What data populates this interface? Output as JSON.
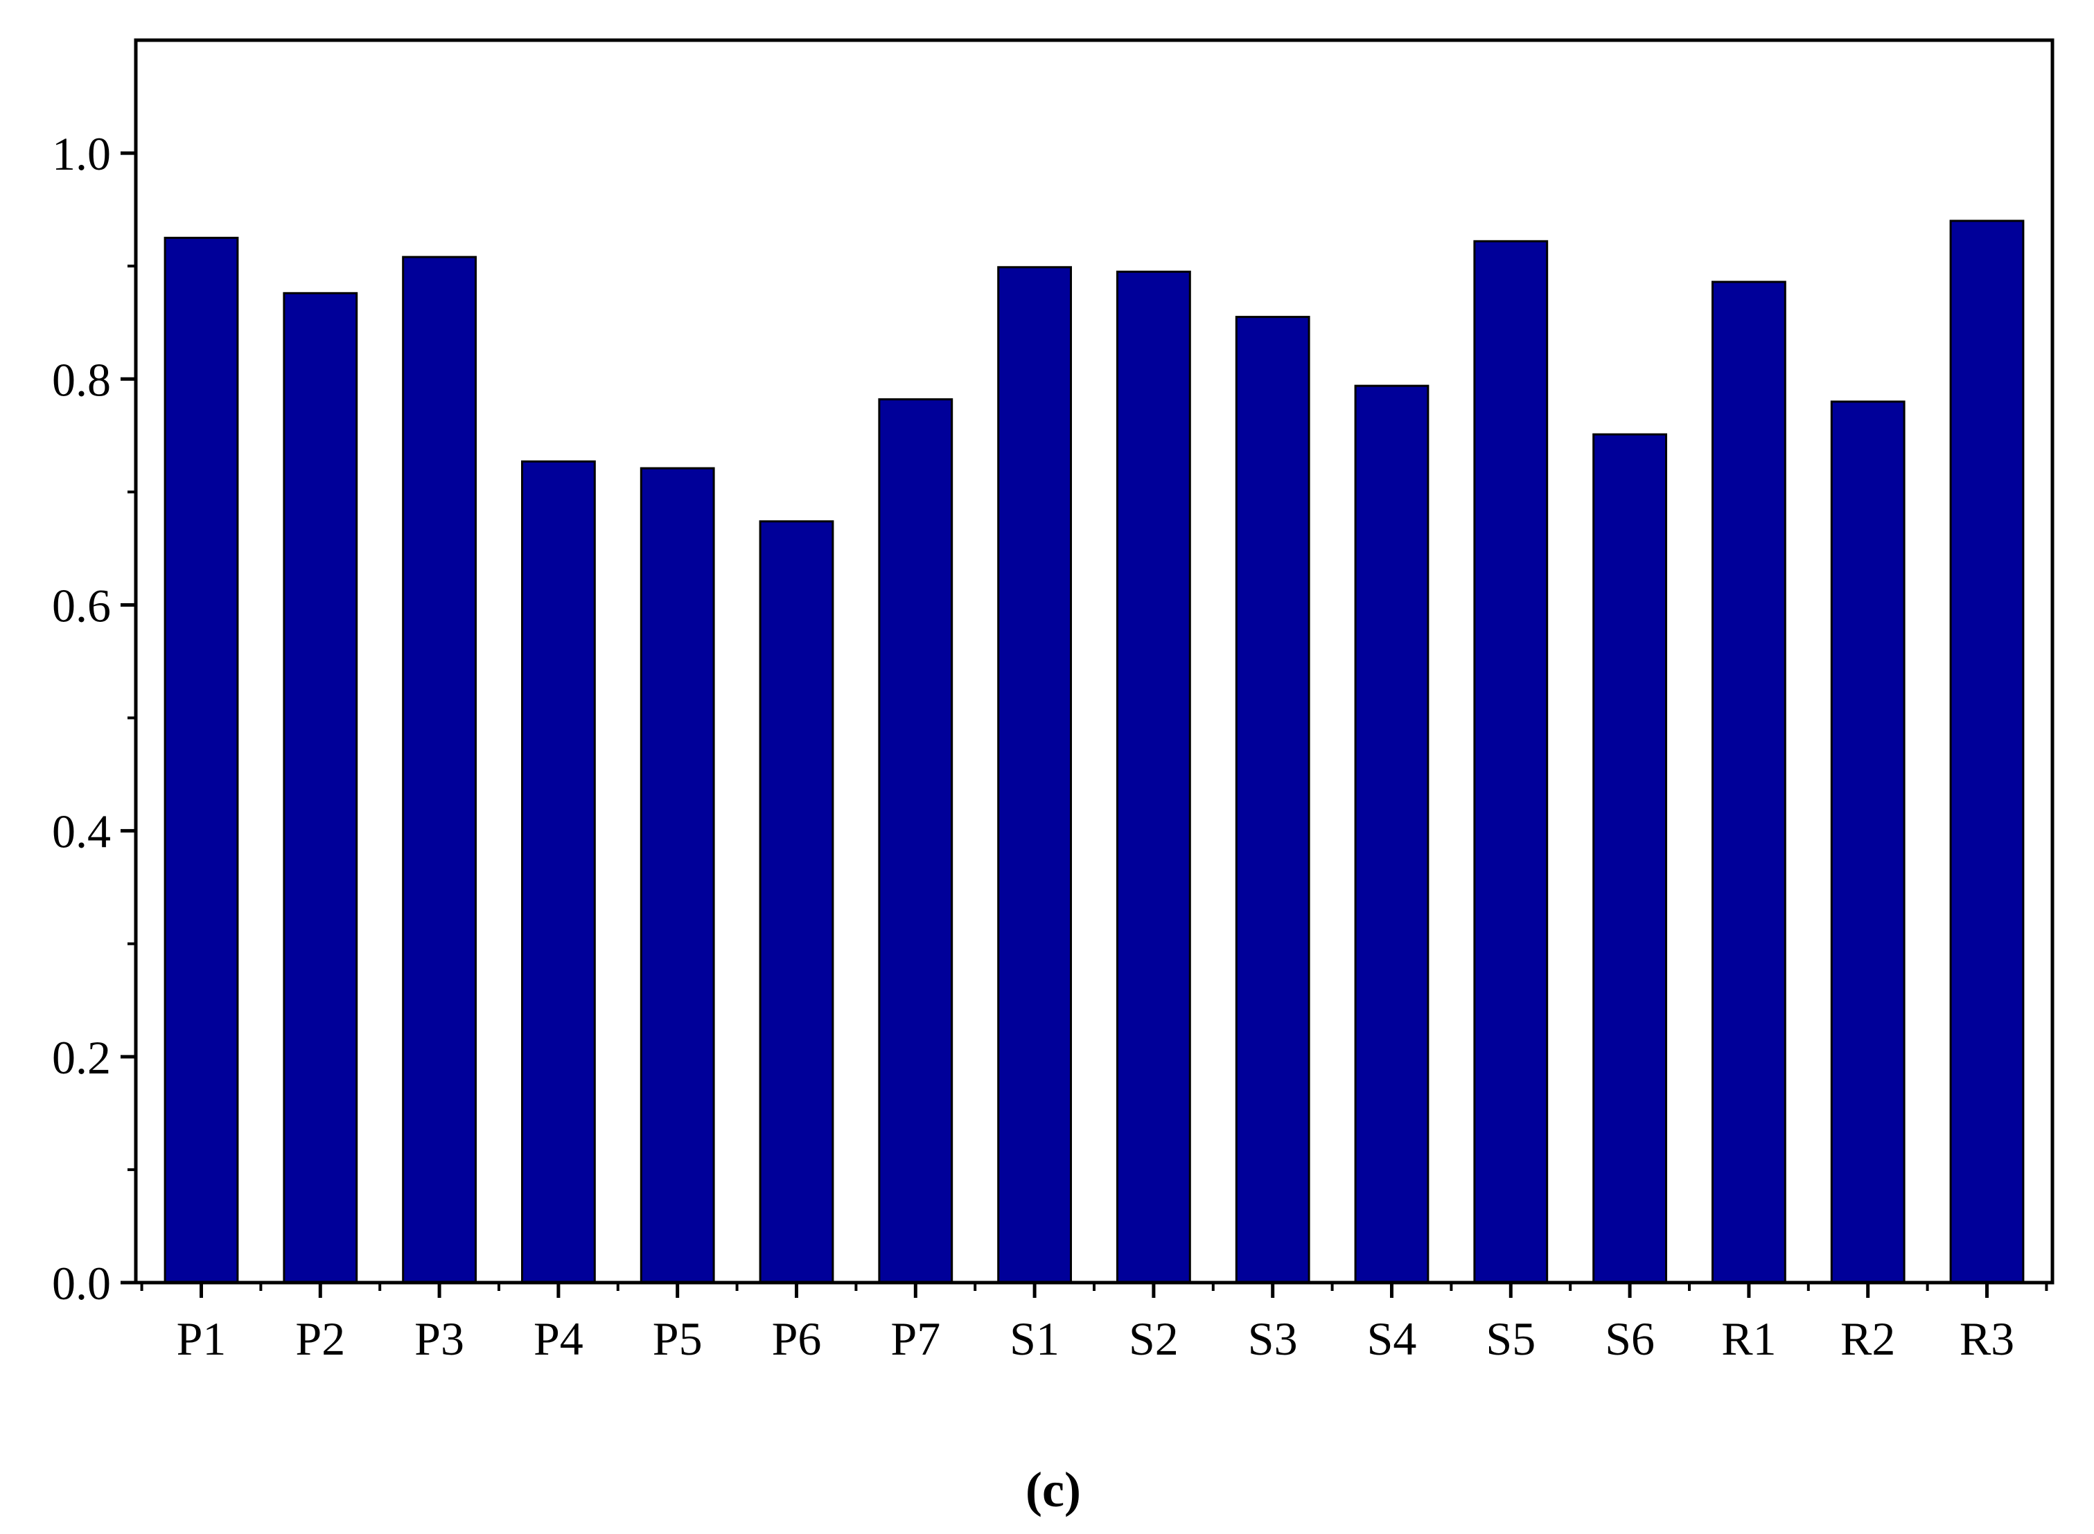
{
  "chart_data": {
    "type": "bar",
    "categories": [
      "P1",
      "P2",
      "P3",
      "P4",
      "P5",
      "P6",
      "P7",
      "S1",
      "S2",
      "S3",
      "S4",
      "S5",
      "S6",
      "R1",
      "R2",
      "R3"
    ],
    "values": [
      0.925,
      0.876,
      0.908,
      0.727,
      0.721,
      0.674,
      0.782,
      0.899,
      0.895,
      0.855,
      0.794,
      0.922,
      0.751,
      0.886,
      0.78,
      0.94
    ],
    "ylim": [
      0,
      1.1
    ],
    "yticks": [
      "0.0",
      "0.2",
      "0.4",
      "0.6",
      "0.8",
      "1.0"
    ],
    "ytick_values": [
      0,
      0.2,
      0.4,
      0.6,
      0.8,
      1.0
    ],
    "yminor_step": 0.1,
    "bar_color": "#000099",
    "grid": false,
    "legend": "none",
    "caption": "(c)"
  }
}
